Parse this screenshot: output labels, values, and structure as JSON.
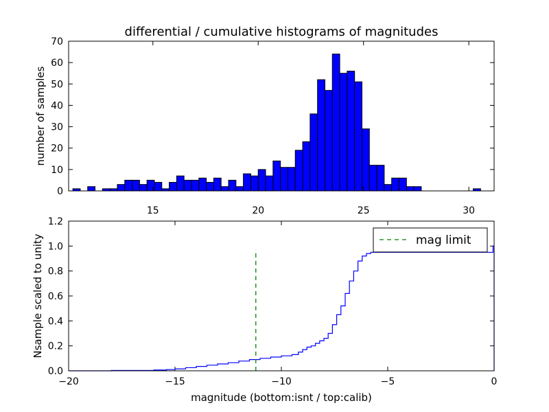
{
  "chart_data": [
    {
      "type": "bar",
      "title": "differential / cumulative histograms of magnitudes",
      "ylabel": "number of samples",
      "xlim": [
        11.0,
        31.2
      ],
      "ylim": [
        0,
        70
      ],
      "xticks": [
        15,
        20,
        25,
        30
      ],
      "yticks": [
        0,
        10,
        20,
        30,
        40,
        50,
        60,
        70
      ],
      "bar_color": "#0000ff",
      "bins": {
        "start": 11.2,
        "width": 0.352,
        "counts": [
          1,
          0,
          2,
          0,
          1,
          1,
          3,
          5,
          5,
          3,
          5,
          4,
          1,
          4,
          7,
          5,
          5,
          6,
          4,
          6,
          2,
          5,
          2,
          8,
          7,
          10,
          7,
          14,
          11,
          11,
          19,
          23,
          36,
          52,
          47,
          64,
          55,
          56,
          51,
          29,
          12,
          12,
          3,
          6,
          6,
          2,
          2,
          0,
          0,
          0,
          0,
          0,
          0,
          0,
          1
        ]
      }
    },
    {
      "type": "line",
      "xlabel": "magnitude (bottom:isnt / top:calib)",
      "ylabel": "Nsample scaled to unity",
      "xlim": [
        -20,
        0
      ],
      "ylim": [
        0.0,
        1.2
      ],
      "xticks": [
        -20,
        -15,
        -10,
        -5,
        0
      ],
      "yticks": [
        0.0,
        0.2,
        0.4,
        0.6,
        0.8,
        1.0,
        1.2
      ],
      "series": [
        {
          "step": "post",
          "color": "#0000ff",
          "x": [
            -20,
            -18,
            -16,
            -15.4,
            -15,
            -14.5,
            -14,
            -13.5,
            -13,
            -12.5,
            -12,
            -11.5,
            -11,
            -10.5,
            -10,
            -9.5,
            -9.2,
            -9,
            -8.8,
            -8.6,
            -8.4,
            -8.2,
            -8,
            -7.8,
            -7.6,
            -7.4,
            -7.2,
            -7,
            -6.8,
            -6.6,
            -6.4,
            -6.2,
            -6,
            -5.8,
            -0.05
          ],
          "y": [
            0.0,
            0.003,
            0.006,
            0.01,
            0.015,
            0.025,
            0.035,
            0.045,
            0.055,
            0.065,
            0.078,
            0.09,
            0.1,
            0.11,
            0.12,
            0.13,
            0.15,
            0.17,
            0.19,
            0.2,
            0.22,
            0.24,
            0.26,
            0.3,
            0.37,
            0.45,
            0.52,
            0.62,
            0.72,
            0.8,
            0.88,
            0.92,
            0.94,
            0.95,
            1.0
          ]
        },
        {
          "name": "mag limit",
          "style": "dashed",
          "color": "#008000",
          "x": [
            -11.2,
            -11.2
          ],
          "y": [
            0.0,
            0.97
          ]
        }
      ],
      "legend": {
        "position": "top-right",
        "entries": [
          "mag limit"
        ]
      }
    }
  ]
}
